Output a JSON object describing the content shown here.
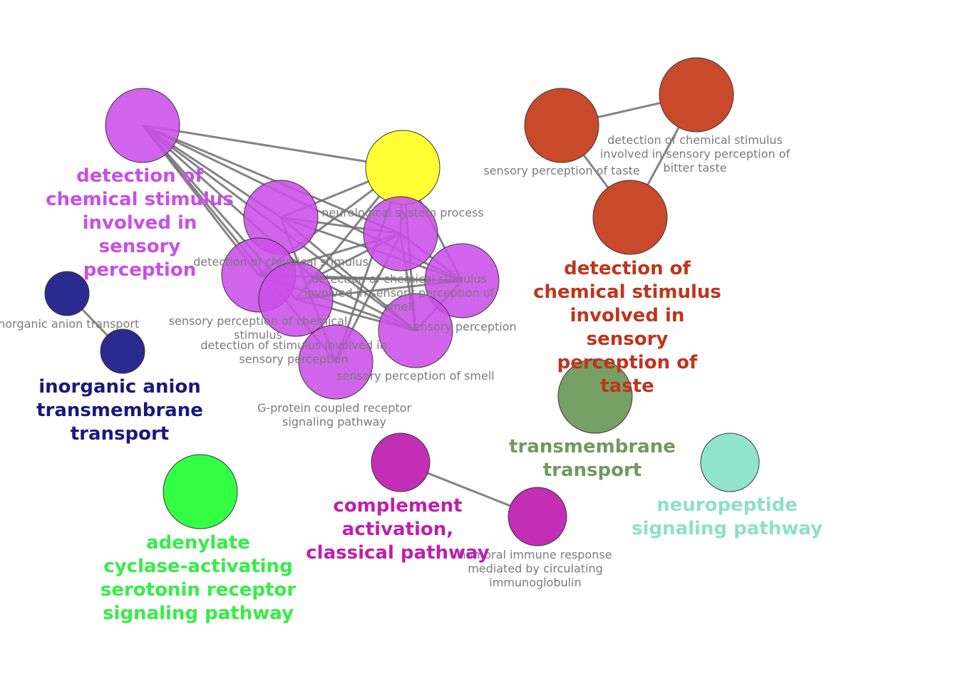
{
  "nodes": [
    {
      "id": "n_purple_main",
      "name": "purple-hub-node",
      "color": "#c94ee8"
    },
    {
      "id": "n_yellow",
      "name": "neurological-system-process-node",
      "color": "#ffff33",
      "label": [
        "neurological system process"
      ]
    },
    {
      "id": "n_p_a",
      "name": "detection-of-chemical-stimulus-node",
      "color": "#c94ee8",
      "label": [
        "detection of chemical stimulus"
      ]
    },
    {
      "id": "n_p_b",
      "name": "sensory-perception-of-chemical-stimulus-node",
      "color": "#c94ee8",
      "label": [
        "sensory perception of chemical",
        "stimulus"
      ]
    },
    {
      "id": "n_p_c",
      "name": "detection-of-stimulus-involved-in-sensory-perception-node",
      "color": "#c94ee8",
      "label": [
        "detection of stimulus involved in",
        "sensory perception"
      ]
    },
    {
      "id": "n_p_d",
      "name": "g-protein-coupled-receptor-node",
      "color": "#c94ee8",
      "label": [
        "G-protein coupled receptor",
        "signaling pathway"
      ]
    },
    {
      "id": "n_p_e",
      "name": "detection-of-chemical-stimulus-smell-node",
      "color": "#c94ee8",
      "label": [
        "detection of chemical stimulus",
        "involved in sensory perception of",
        "smell"
      ]
    },
    {
      "id": "n_p_f",
      "name": "sensory-perception-node",
      "color": "#c94ee8",
      "label": [
        "sensory perception"
      ]
    },
    {
      "id": "n_p_g",
      "name": "sensory-perception-of-smell-node",
      "color": "#c94ee8",
      "label": [
        "sensory perception of smell"
      ]
    },
    {
      "id": "n_p_h",
      "name": "purple-inner-node",
      "color": "#c94ee8"
    },
    {
      "id": "n_navy_1",
      "name": "inorganic-anion-transport-node",
      "color": "#2a2a90",
      "label": [
        "inorganic anion transport"
      ]
    },
    {
      "id": "n_navy_2",
      "name": "inorganic-anion-transmembrane-node",
      "color": "#2a2a90"
    },
    {
      "id": "n_red_1",
      "name": "sensory-perception-of-taste-node",
      "color": "#c84a2a",
      "label": [
        "sensory perception of taste"
      ]
    },
    {
      "id": "n_red_2",
      "name": "bitter-taste-node",
      "color": "#c84a2a",
      "label": [
        "detection of chemical stimulus",
        "involved in sensory perception of",
        "bitter taste"
      ]
    },
    {
      "id": "n_red_3",
      "name": "taste-main-node",
      "color": "#c84a2a"
    },
    {
      "id": "n_olive",
      "name": "transmembrane-transport-node",
      "color": "#76a065"
    },
    {
      "id": "n_mint",
      "name": "neuropeptide-signaling-node",
      "color": "#90e4cc"
    },
    {
      "id": "n_green",
      "name": "adenylate-cyclase-node",
      "color": "#33ff44"
    },
    {
      "id": "n_mag_1",
      "name": "complement-activation-node",
      "color": "#c22eb4"
    },
    {
      "id": "n_mag_2",
      "name": "humoral-immune-response-node",
      "color": "#c22eb4",
      "label": [
        "humoral immune response",
        "mediated by circulating",
        "immunoglobulin"
      ]
    }
  ],
  "groups": [
    {
      "name": "group-label-chemical-stimulus",
      "color": "#c94ee8",
      "lines": [
        "detection of",
        "chemical stimulus",
        "involved in",
        "sensory",
        "perception"
      ]
    },
    {
      "name": "group-label-inorganic-anion",
      "color": "#181880",
      "lines": [
        "inorganic anion",
        "transmembrane",
        "transport"
      ]
    },
    {
      "name": "group-label-taste",
      "color": "#c0341a",
      "lines": [
        "detection of",
        "chemical stimulus",
        "involved in",
        "sensory",
        "perception of",
        "taste"
      ]
    },
    {
      "name": "group-label-transmembrane",
      "color": "#6e9a5e",
      "lines": [
        "transmembrane",
        "transport"
      ]
    },
    {
      "name": "group-label-neuropeptide",
      "color": "#8ee0c8",
      "lines": [
        "neuropeptide",
        "signaling pathway"
      ]
    },
    {
      "name": "group-label-adenylate",
      "color": "#33ee44",
      "lines": [
        "adenylate",
        "cyclase-activating",
        "serotonin receptor",
        "signaling pathway"
      ]
    },
    {
      "name": "group-label-complement",
      "color": "#c01eae",
      "lines": [
        "complement",
        "activation,",
        "classical pathway"
      ]
    }
  ],
  "edges": [
    [
      "n_purple_main",
      "n_yellow"
    ],
    [
      "n_purple_main",
      "n_p_a"
    ],
    [
      "n_purple_main",
      "n_p_b"
    ],
    [
      "n_purple_main",
      "n_p_c"
    ],
    [
      "n_purple_main",
      "n_p_d"
    ],
    [
      "n_purple_main",
      "n_p_e"
    ],
    [
      "n_purple_main",
      "n_p_f"
    ],
    [
      "n_purple_main",
      "n_p_g"
    ],
    [
      "n_purple_main",
      "n_p_h"
    ],
    [
      "n_yellow",
      "n_p_a"
    ],
    [
      "n_yellow",
      "n_p_b"
    ],
    [
      "n_yellow",
      "n_p_c"
    ],
    [
      "n_yellow",
      "n_p_d"
    ],
    [
      "n_yellow",
      "n_p_e"
    ],
    [
      "n_yellow",
      "n_p_f"
    ],
    [
      "n_yellow",
      "n_p_g"
    ],
    [
      "n_p_a",
      "n_p_e"
    ],
    [
      "n_p_a",
      "n_p_f"
    ],
    [
      "n_p_a",
      "n_p_g"
    ],
    [
      "n_p_a",
      "n_p_d"
    ],
    [
      "n_p_b",
      "n_p_e"
    ],
    [
      "n_p_b",
      "n_p_f"
    ],
    [
      "n_p_b",
      "n_p_g"
    ],
    [
      "n_p_h",
      "n_p_e"
    ],
    [
      "n_p_h",
      "n_p_f"
    ],
    [
      "n_p_h",
      "n_p_g"
    ],
    [
      "n_p_c",
      "n_p_f"
    ],
    [
      "n_p_c",
      "n_p_g"
    ],
    [
      "n_p_e",
      "n_p_g"
    ],
    [
      "n_p_e",
      "n_p_f"
    ],
    [
      "n_p_d",
      "n_p_e"
    ],
    [
      "n_p_f",
      "n_p_g"
    ],
    [
      "n_navy_1",
      "n_navy_2"
    ],
    [
      "n_red_1",
      "n_red_2"
    ],
    [
      "n_red_1",
      "n_red_3"
    ],
    [
      "n_red_2",
      "n_red_3"
    ],
    [
      "n_mag_1",
      "n_mag_2"
    ]
  ]
}
